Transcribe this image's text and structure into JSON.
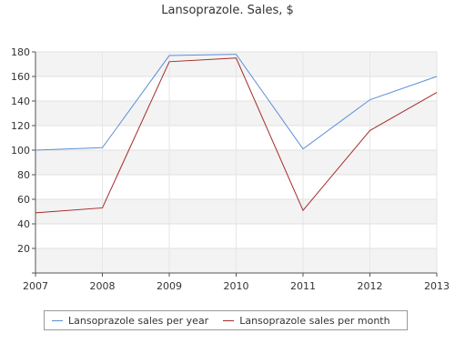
{
  "chart_data": {
    "type": "line",
    "title": "Lansoprazole. Sales, $",
    "xlabel": "",
    "ylabel": "",
    "categories": [
      "2007",
      "2008",
      "2009",
      "2010",
      "2011",
      "2012",
      "2013"
    ],
    "ylim": [
      0,
      180
    ],
    "yticks": [
      20,
      40,
      60,
      80,
      100,
      120,
      140,
      160,
      180
    ],
    "grid": true,
    "legend_position": "bottom",
    "series": [
      {
        "name": "Lansoprazole sales per year",
        "color": "#5b8fd6",
        "values": [
          100,
          102,
          177,
          178,
          101,
          141,
          160
        ]
      },
      {
        "name": "Lansoprazole sales per month",
        "color": "#a52a2a",
        "values": [
          49,
          53,
          172,
          175,
          51,
          116,
          147
        ]
      }
    ]
  }
}
